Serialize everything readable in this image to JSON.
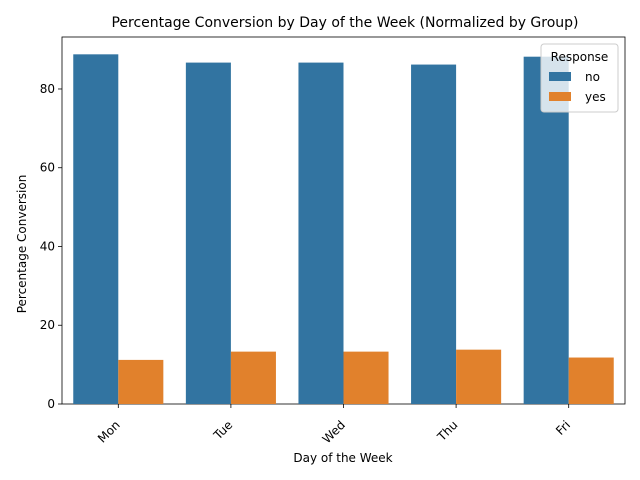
{
  "chart_data": {
    "type": "bar",
    "title": "Percentage Conversion by Day of the Week (Normalized by Group)",
    "xlabel": "Day of the Week",
    "ylabel": "Percentage Conversion",
    "categories": [
      "Mon",
      "Tue",
      "Wed",
      "Thu",
      "Fri"
    ],
    "series": [
      {
        "name": "no",
        "color": "#3274a1",
        "values": [
          88.8,
          86.7,
          86.7,
          86.2,
          88.2
        ]
      },
      {
        "name": "yes",
        "color": "#e1812c",
        "values": [
          11.2,
          13.3,
          13.3,
          13.8,
          11.8
        ]
      }
    ],
    "ylim": [
      0,
      93.2
    ],
    "yticks": [
      0,
      20,
      40,
      60,
      80
    ],
    "ytick_labels": [
      "0",
      "20",
      "40",
      "60",
      "80"
    ],
    "grid": false,
    "legend": {
      "title": "Response",
      "placement": "top-right"
    }
  }
}
